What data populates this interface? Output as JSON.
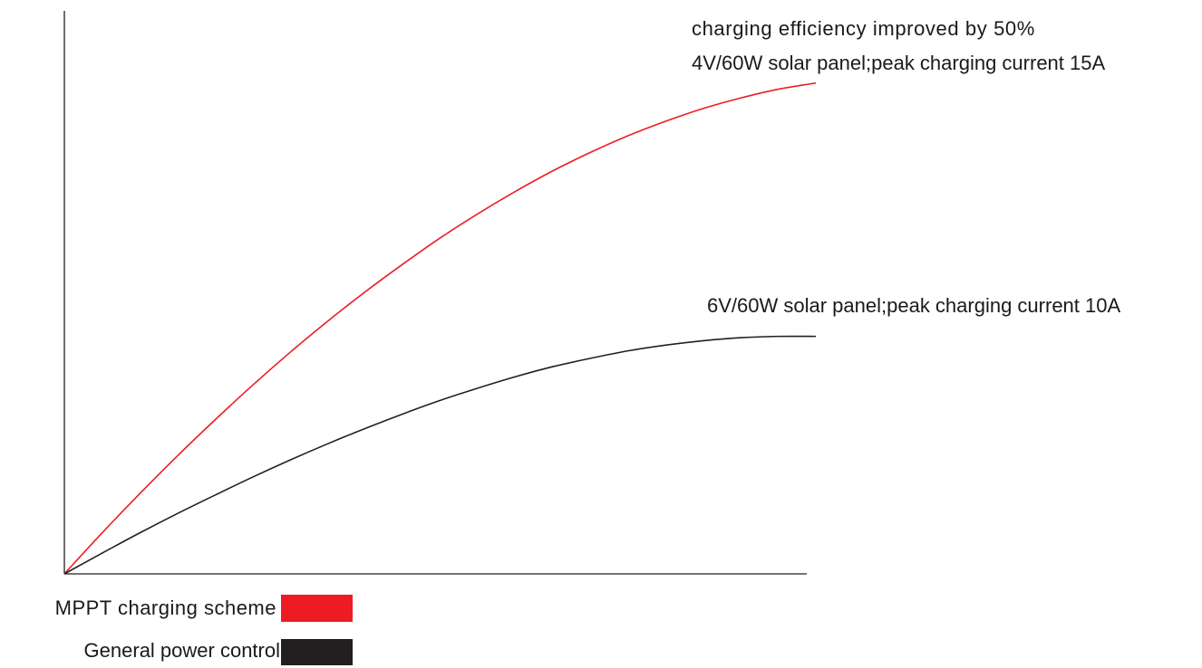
{
  "chart_data": {
    "type": "line",
    "title": "",
    "xlabel": "",
    "ylabel": "",
    "grid": false,
    "legend_position": "bottom-left",
    "series": [
      {
        "name": "MPPT charging scheme",
        "color": "#ed1c24",
        "x": [
          0,
          0.05,
          0.1,
          0.15,
          0.2,
          0.25,
          0.3,
          0.35,
          0.4,
          0.45,
          0.5,
          0.55,
          0.6,
          0.65,
          0.7,
          0.75,
          0.8,
          0.85,
          0.9,
          0.95,
          1.0
        ],
        "y": [
          0,
          0.093,
          0.182,
          0.268,
          0.35,
          0.429,
          0.504,
          0.575,
          0.642,
          0.705,
          0.765,
          0.82,
          0.871,
          0.918,
          0.96,
          0.998,
          1.031,
          1.06,
          1.084,
          1.104,
          1.118
        ]
      },
      {
        "name": "General power control",
        "color": "#231f20",
        "x": [
          0,
          0.05,
          0.1,
          0.15,
          0.2,
          0.25,
          0.3,
          0.35,
          0.4,
          0.45,
          0.5,
          0.55,
          0.6,
          0.65,
          0.7,
          0.75,
          0.8,
          0.85,
          0.9,
          0.95,
          1.0
        ],
        "y": [
          0,
          0.047,
          0.093,
          0.137,
          0.179,
          0.22,
          0.259,
          0.296,
          0.331,
          0.364,
          0.395,
          0.423,
          0.449,
          0.472,
          0.491,
          0.508,
          0.521,
          0.531,
          0.538,
          0.541,
          0.541
        ]
      }
    ],
    "annotations": [
      {
        "text": "charging efficiency improved by 50%",
        "series": 0
      },
      {
        "text": "4V/60W solar panel;peak charging current 15A",
        "series": 0
      },
      {
        "text": "6V/60W solar panel;peak charging current 10A",
        "series": 1
      }
    ]
  }
}
